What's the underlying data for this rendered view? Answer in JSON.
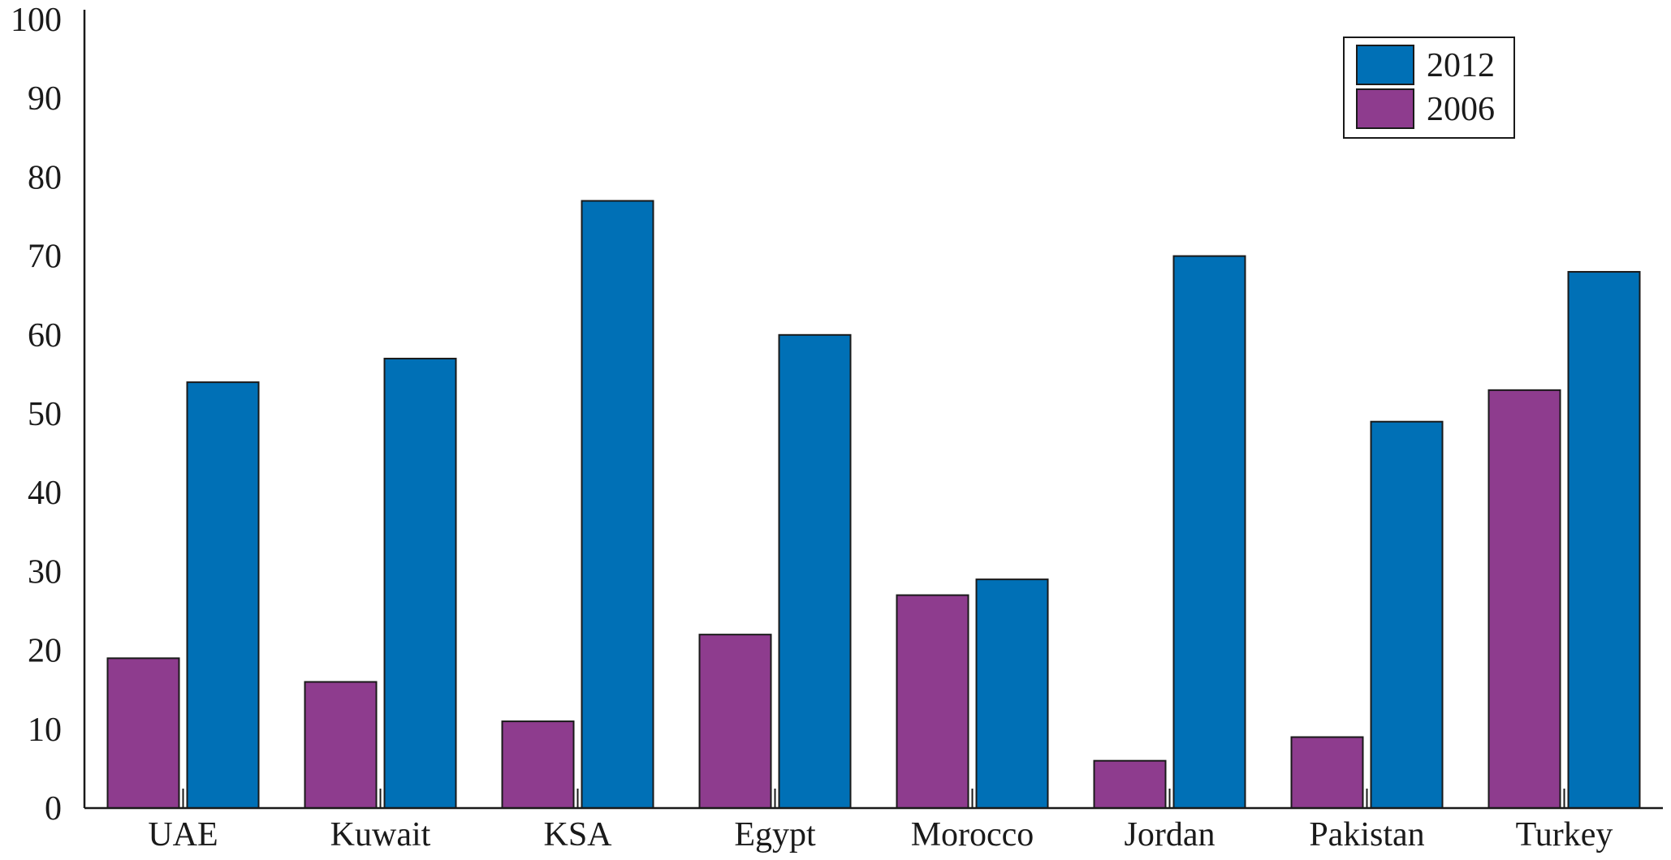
{
  "chart_data": {
    "type": "bar",
    "title": "",
    "xlabel": "",
    "ylabel": "",
    "categories": [
      "UAE",
      "Kuwait",
      "KSA",
      "Egypt",
      "Morocco",
      "Jordan",
      "Pakistan",
      "Turkey"
    ],
    "series": [
      {
        "name": "2006",
        "color": "#8e3c8e",
        "values": [
          19,
          16,
          11,
          22,
          27,
          6,
          9,
          53
        ]
      },
      {
        "name": "2012",
        "color": "#0070b6",
        "values": [
          54,
          57,
          77,
          60,
          29,
          70,
          49,
          68
        ]
      }
    ],
    "ylim": [
      0,
      100
    ],
    "yticks": [
      0,
      10,
      20,
      30,
      40,
      50,
      60,
      70,
      80,
      90,
      100
    ],
    "grid": false,
    "legend": {
      "position": "top-right",
      "entries": [
        {
          "label": "2012",
          "color": "#0070b6"
        },
        {
          "label": "2006",
          "color": "#8e3c8e"
        }
      ]
    }
  }
}
